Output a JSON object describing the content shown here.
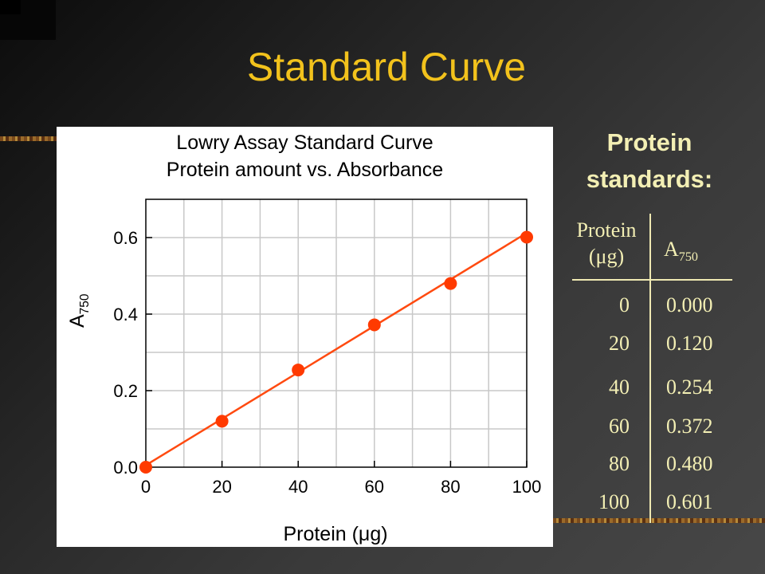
{
  "slide": {
    "title": "Standard Curve"
  },
  "chart_data": {
    "type": "scatter",
    "title": "Lowry Assay Standard Curve",
    "subtitle": "Protein amount vs. Absorbance",
    "xlabel": "Protein (μg)",
    "ylabel": {
      "base": "A",
      "sub": "750"
    },
    "xlim": [
      0,
      100
    ],
    "ylim": [
      0,
      0.7
    ],
    "x_ticks": [
      "0",
      "20",
      "40",
      "60",
      "80",
      "100"
    ],
    "y_ticks": [
      "0.0",
      "0.2",
      "0.4",
      "0.6"
    ],
    "grid": true,
    "series": [
      {
        "x": [
          0,
          20,
          40,
          60,
          80,
          100
        ],
        "y": [
          0.0,
          0.12,
          0.254,
          0.372,
          0.48,
          0.601
        ]
      }
    ],
    "fit_line": {
      "x": [
        0,
        100
      ],
      "y": [
        0.005,
        0.612
      ]
    },
    "colors": {
      "points": "#ff3a00",
      "line": "#ff4a10",
      "grid": "#c8c8c8"
    }
  },
  "side_panel": {
    "heading_line1": "Protein",
    "heading_line2": "standards:",
    "table": {
      "col1_header_line1": "Protein",
      "col1_header_line2": "(μg)",
      "col2_header": {
        "base": "A",
        "sub": "750"
      },
      "rows": [
        {
          "protein": "0",
          "a750": "0.000"
        },
        {
          "protein": "20",
          "a750": "0.120"
        },
        {
          "protein": "40",
          "a750": "0.254"
        },
        {
          "protein": "60",
          "a750": "0.372"
        },
        {
          "protein": "80",
          "a750": "0.480"
        },
        {
          "protein": "100",
          "a750": "0.601"
        }
      ]
    }
  },
  "colors": {
    "title": "#f2c21c",
    "side_text": "#f3efb4"
  }
}
